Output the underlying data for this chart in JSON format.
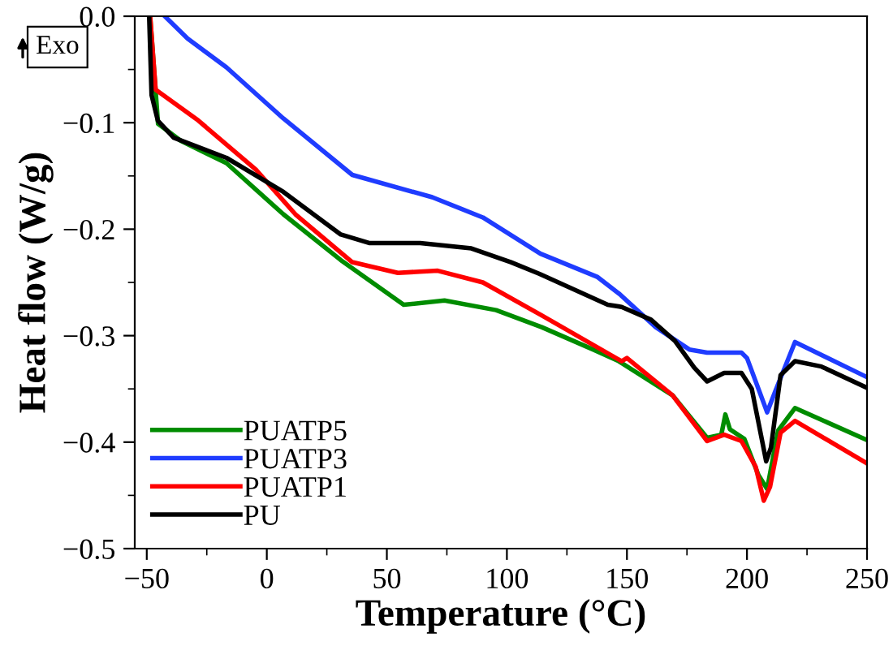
{
  "chart_data": {
    "type": "line",
    "xlabel": "Temperature (°C)",
    "ylabel": "Heat flow (W/g)",
    "annotations": [
      "Exo"
    ],
    "xlim": [
      -55,
      250
    ],
    "xticks": [
      {
        "value": -50,
        "label": "−50"
      },
      0,
      50,
      100,
      150,
      200,
      250
    ],
    "ylim": [
      -0.5,
      0
    ],
    "yticks": [
      {
        "value": -0.5,
        "label": "−0.5"
      },
      {
        "value": -0.4,
        "label": "−0.4"
      },
      {
        "value": -0.3,
        "label": "−0.3"
      },
      {
        "value": -0.2,
        "label": "−0.2"
      },
      {
        "value": -0.1,
        "label": "−0.1"
      },
      {
        "value": 0,
        "label": "0.0"
      }
    ],
    "grid": false,
    "legend": "bottom left",
    "marker": "none",
    "line_style": "solid",
    "series": [
      {
        "name": "PUATP5",
        "color": "#008c00",
        "x": [
          -48.6,
          -45.3,
          -35.8,
          -16.8,
          6.9,
          30.8,
          57,
          74,
          95.5,
          114.5,
          135.9,
          146.6,
          169,
          183.4,
          189.3,
          191,
          192.9,
          198.9,
          204.8,
          208.4,
          213,
          220,
          250
        ],
        "values": [
          0,
          -0.101,
          -0.117,
          -0.138,
          -0.186,
          -0.229,
          -0.271,
          -0.267,
          -0.276,
          -0.292,
          -0.313,
          -0.324,
          -0.356,
          -0.396,
          -0.393,
          -0.374,
          -0.388,
          -0.397,
          -0.431,
          -0.444,
          -0.389,
          -0.368,
          -0.398
        ]
      },
      {
        "name": "PUATP3",
        "color": "#1f3cff",
        "x": [
          -42.5,
          -33,
          -16.8,
          6.9,
          35.6,
          68.9,
          90,
          114,
          137.8,
          147,
          162,
          176,
          183.4,
          197.7,
          200,
          208.4,
          212,
          220,
          250
        ],
        "values": [
          0,
          -0.021,
          -0.048,
          -0.096,
          -0.149,
          -0.17,
          -0.189,
          -0.223,
          -0.245,
          -0.261,
          -0.292,
          -0.313,
          -0.316,
          -0.316,
          -0.321,
          -0.372,
          -0.351,
          -0.306,
          -0.339
        ]
      },
      {
        "name": "PUATP1",
        "color": "#ff0000",
        "x": [
          -48.6,
          -46.3,
          -28.5,
          -4.6,
          11.9,
          35.6,
          54.6,
          71.2,
          90,
          114.5,
          147.8,
          150,
          169,
          183.4,
          190.5,
          197.7,
          203.6,
          207,
          209.6,
          214,
          220,
          250
        ],
        "values": [
          0,
          -0.069,
          -0.098,
          -0.144,
          -0.186,
          -0.231,
          -0.241,
          -0.239,
          -0.25,
          -0.281,
          -0.324,
          -0.321,
          -0.356,
          -0.399,
          -0.393,
          -0.399,
          -0.423,
          -0.455,
          -0.442,
          -0.391,
          -0.38,
          -0.42
        ]
      },
      {
        "name": "PU",
        "color": "#000000",
        "x": [
          -49,
          -48,
          -45.4,
          -38.8,
          -16.8,
          6.9,
          30.8,
          42.6,
          63.9,
          85.2,
          101.7,
          113.6,
          142,
          147.8,
          160,
          170,
          178,
          183.4,
          190.5,
          197.7,
          202,
          208,
          210,
          214,
          220,
          231,
          250
        ],
        "values": [
          0,
          -0.074,
          -0.098,
          -0.114,
          -0.133,
          -0.165,
          -0.205,
          -0.213,
          -0.213,
          -0.218,
          -0.231,
          -0.242,
          -0.271,
          -0.273,
          -0.285,
          -0.305,
          -0.33,
          -0.343,
          -0.335,
          -0.335,
          -0.35,
          -0.418,
          -0.405,
          -0.337,
          -0.324,
          -0.329,
          -0.349
        ]
      }
    ]
  }
}
